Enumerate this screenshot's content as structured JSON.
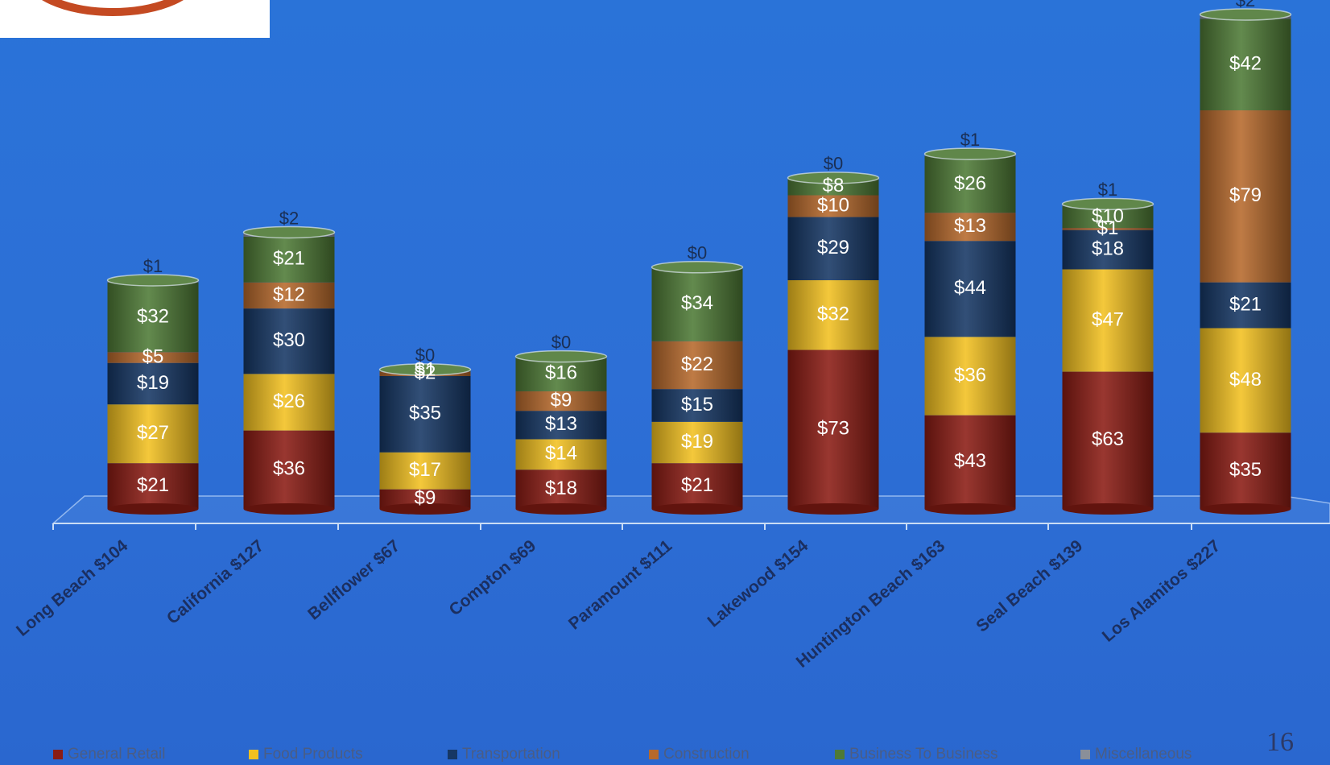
{
  "page": {
    "page_number": "16"
  },
  "colors": {
    "background": "#2d6fd6",
    "General Retail": "#8b1c14",
    "Food Products": "#f2c020",
    "Transportation": "#163765",
    "Construction": "#b6692c",
    "Business To Business": "#4e7a36",
    "Miscellaneous": "#8a8f99"
  },
  "legend": {
    "items": [
      {
        "label": "General Retail",
        "color": "#8b1c14"
      },
      {
        "label": "Food Products",
        "color": "#f2c020"
      },
      {
        "label": "Transportation",
        "color": "#163765"
      },
      {
        "label": "Construction",
        "color": "#b6692c"
      },
      {
        "label": "Business To Business",
        "color": "#4e7a36"
      },
      {
        "label": "Miscellaneous",
        "color": "#8a8f99"
      }
    ]
  },
  "chart_data": {
    "type": "bar",
    "stacked": true,
    "style": "3d-cylinder",
    "legend_position": "bottom",
    "grid": false,
    "title": "",
    "xlabel": "",
    "ylabel": "",
    "categories": [
      "Long Beach $104",
      "California $127",
      "Bellflower $67",
      "Compton $69",
      "Paramount $111",
      "Lakewood $154",
      "Huntington Beach $163",
      "Seal Beach $139",
      "Los Alamitos $227"
    ],
    "series": [
      {
        "name": "General Retail",
        "values": [
          21,
          36,
          9,
          18,
          21,
          73,
          43,
          63,
          35
        ]
      },
      {
        "name": "Food Products",
        "values": [
          27,
          26,
          17,
          14,
          19,
          32,
          36,
          47,
          48
        ]
      },
      {
        "name": "Transportation",
        "values": [
          19,
          30,
          35,
          13,
          15,
          29,
          44,
          18,
          21
        ]
      },
      {
        "name": "Construction",
        "values": [
          5,
          12,
          2,
          9,
          22,
          10,
          13,
          1,
          79
        ]
      },
      {
        "name": "Business To Business",
        "values": [
          32,
          21,
          1,
          16,
          34,
          8,
          26,
          10,
          42
        ]
      },
      {
        "name": "Miscellaneous",
        "values": [
          1,
          2,
          0,
          0,
          0,
          0,
          1,
          1,
          2
        ]
      }
    ],
    "ylim": [
      0,
      227
    ]
  }
}
